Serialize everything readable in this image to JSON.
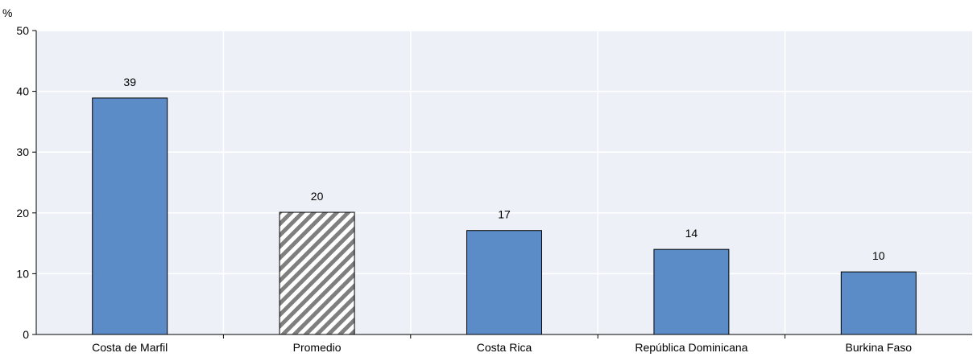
{
  "chart_data": {
    "type": "bar",
    "y_unit": "%",
    "categories": [
      "Costa de Marfil",
      "Promedio",
      "Costa Rica",
      "República Dominicana",
      "Burkina Faso"
    ],
    "values": [
      38.9,
      20.1,
      17.1,
      14.0,
      10.3
    ],
    "data_labels": [
      "39",
      "20",
      "17",
      "14",
      "10"
    ],
    "bar_styles": [
      "solid",
      "hatched",
      "solid",
      "solid",
      "solid"
    ],
    "ylim": [
      0,
      50
    ],
    "yticks": [
      0,
      10,
      20,
      30,
      40,
      50
    ],
    "grid": true,
    "colors": {
      "bar": "#5b8cc8",
      "hatch": "#7f7f7f",
      "plot_bg": "#edf1f7",
      "grid": "#ffffff",
      "axis": "#000000"
    }
  }
}
